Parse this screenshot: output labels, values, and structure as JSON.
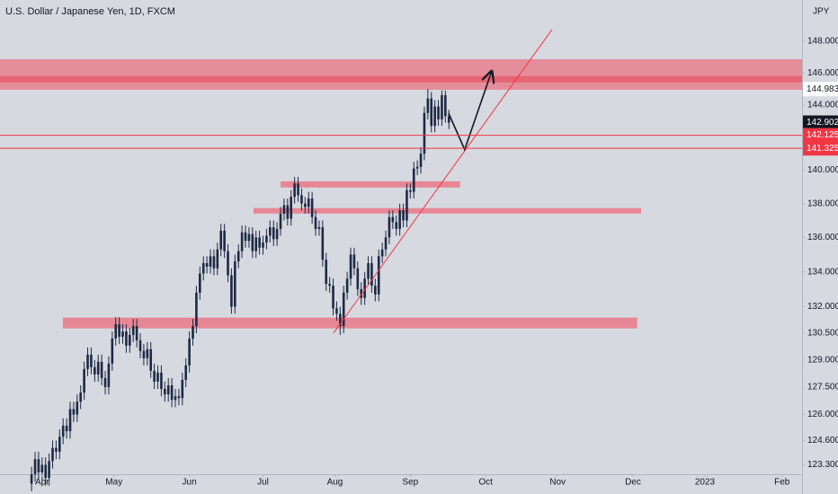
{
  "chart_data": {
    "type": "candlestick",
    "title": "U.S. Dollar / Japanese Yen, 1D, FXCM",
    "y_axis_label": "JPY",
    "log": true,
    "grid": false,
    "color": "#1e2a45",
    "xlim": [
      -12,
      216.7
    ],
    "ylim": [
      122.8,
      150.66
    ],
    "xticks": [
      {
        "value": 0,
        "label": "Apr"
      },
      {
        "value": 20.5,
        "label": "May"
      },
      {
        "value": 42,
        "label": "Jun"
      },
      {
        "value": 63,
        "label": "Jul"
      },
      {
        "value": 83.5,
        "label": "Aug"
      },
      {
        "value": 105,
        "label": "Sep"
      },
      {
        "value": 126.5,
        "label": "Oct"
      },
      {
        "value": 147,
        "label": "Nov"
      },
      {
        "value": 168.5,
        "label": "Dec"
      },
      {
        "value": 189,
        "label": "2023"
      },
      {
        "value": 211,
        "label": "Feb"
      }
    ],
    "yticks": [
      {
        "value": 123.3,
        "label": "123.300"
      },
      {
        "value": 124.6,
        "label": "124.600"
      },
      {
        "value": 126,
        "label": "126.000"
      },
      {
        "value": 127.5,
        "label": "127.500"
      },
      {
        "value": 129,
        "label": "129.000"
      },
      {
        "value": 130.5,
        "label": "130.500"
      },
      {
        "value": 132,
        "label": "132.000"
      },
      {
        "value": 134,
        "label": "134.000"
      },
      {
        "value": 136,
        "label": "136.000"
      },
      {
        "value": 138,
        "label": "138.000"
      },
      {
        "value": 140,
        "label": "140.000"
      },
      {
        "value": 144,
        "label": "144.000"
      },
      {
        "value": 146,
        "label": "146.000"
      },
      {
        "value": 148,
        "label": "148.000"
      }
    ],
    "x": [
      -3,
      -2,
      -1,
      0,
      1,
      2,
      3,
      4,
      5,
      6,
      7,
      8,
      9,
      10,
      11,
      12,
      13,
      14,
      15,
      16,
      17,
      18,
      19,
      20,
      21,
      22,
      23,
      24,
      25,
      26,
      27,
      28,
      29,
      30,
      31,
      32,
      33,
      34,
      35,
      36,
      37,
      38,
      39,
      40,
      41,
      42,
      43,
      44,
      45,
      46,
      47,
      48,
      49,
      50,
      51,
      52,
      53,
      54,
      55,
      56,
      57,
      58,
      59,
      60,
      61,
      62,
      63,
      64,
      65,
      66,
      67,
      68,
      69,
      70,
      71,
      72,
      73,
      74,
      75,
      76,
      77,
      78,
      79,
      80,
      81,
      82,
      83,
      84,
      85,
      86,
      87,
      88,
      89,
      90,
      91,
      92,
      93,
      94,
      95,
      96,
      97,
      98,
      99,
      100,
      101,
      102,
      103,
      104,
      105,
      106,
      107,
      108,
      109,
      110,
      111,
      112,
      113,
      114,
      115,
      116
    ],
    "open": [
      122.3,
      122.8,
      123.6,
      122.9,
      123.3,
      122.6,
      123.5,
      124.2,
      124.0,
      124.8,
      125.4,
      125.1,
      126.3,
      126.0,
      126.7,
      127.2,
      128.5,
      129.3,
      128.6,
      128.2,
      128.9,
      128.0,
      127.5,
      128.8,
      130.2,
      131.0,
      130.3,
      130.6,
      129.8,
      130.4,
      130.9,
      130.1,
      129.5,
      129.1,
      129.6,
      128.4,
      127.8,
      128.3,
      127.4,
      127.1,
      127.6,
      126.8,
      127.0,
      126.9,
      127.9,
      128.7,
      130.2,
      130.9,
      132.8,
      133.9,
      134.5,
      134.3,
      134.9,
      134.2,
      135.3,
      136.4,
      135.2,
      133.8,
      132.0,
      134.6,
      135.2,
      136.3,
      135.8,
      136.2,
      135.2,
      136.0,
      135.4,
      135.7,
      136.1,
      136.6,
      135.9,
      136.5,
      137.4,
      137.9,
      137.1,
      138.4,
      139.2,
      138.5,
      138.0,
      137.8,
      138.3,
      137.2,
      136.5,
      136.6,
      134.7,
      133.3,
      133.2,
      131.9,
      131.6,
      130.9,
      132.8,
      133.6,
      135.0,
      134.2,
      133.0,
      132.5,
      133.6,
      134.5,
      133.2,
      132.7,
      134.9,
      135.3,
      136.0,
      137.2,
      136.9,
      136.5,
      137.6,
      137.0,
      138.8,
      138.7,
      140.1,
      140.2,
      141.0,
      143.5,
      144.4,
      142.7,
      143.9,
      143.1,
      144.6,
      143.3
    ],
    "high": [
      123.2,
      124.0,
      124.0,
      123.7,
      123.7,
      123.9,
      124.6,
      124.6,
      125.2,
      125.8,
      125.8,
      126.7,
      126.7,
      127.1,
      127.6,
      128.9,
      129.7,
      129.7,
      129.0,
      129.3,
      129.3,
      128.4,
      129.2,
      130.6,
      131.4,
      131.4,
      131.0,
      131.0,
      130.8,
      131.3,
      131.3,
      130.5,
      129.9,
      130.0,
      130.0,
      128.8,
      128.7,
      128.7,
      127.8,
      128.0,
      128.0,
      127.4,
      127.4,
      128.3,
      129.1,
      130.6,
      131.3,
      133.2,
      134.3,
      134.9,
      134.9,
      135.3,
      135.3,
      135.7,
      136.8,
      136.8,
      135.6,
      134.2,
      135.0,
      135.6,
      136.7,
      136.7,
      136.6,
      136.6,
      136.4,
      136.4,
      136.1,
      136.5,
      137.0,
      137.0,
      136.9,
      137.8,
      138.3,
      138.3,
      138.8,
      139.6,
      139.6,
      138.9,
      138.4,
      138.7,
      138.7,
      137.6,
      137.0,
      137.0,
      135.1,
      133.7,
      133.6,
      132.3,
      132.0,
      133.2,
      134.0,
      135.4,
      135.4,
      134.6,
      133.4,
      134.0,
      134.9,
      134.9,
      133.6,
      135.3,
      135.7,
      136.4,
      137.6,
      137.6,
      137.3,
      138.0,
      138.0,
      139.2,
      139.2,
      140.5,
      140.6,
      141.4,
      143.9,
      144.983,
      144.8,
      144.3,
      144.3,
      144.9,
      144.9,
      143.7
    ],
    "low": [
      121.9,
      122.4,
      122.5,
      122.5,
      122.2,
      122.2,
      123.1,
      123.6,
      123.6,
      124.4,
      124.7,
      124.7,
      125.6,
      125.6,
      126.3,
      126.8,
      128.1,
      128.2,
      127.8,
      127.8,
      127.6,
      127.1,
      127.1,
      128.4,
      129.8,
      129.9,
      129.9,
      129.4,
      129.4,
      130.0,
      129.7,
      129.1,
      128.7,
      128.7,
      128.0,
      127.4,
      127.4,
      127.0,
      126.7,
      126.7,
      126.4,
      126.4,
      126.5,
      126.5,
      127.5,
      128.3,
      129.8,
      130.5,
      132.4,
      133.5,
      133.9,
      133.9,
      133.8,
      133.8,
      134.9,
      134.8,
      133.4,
      131.6,
      131.6,
      134.2,
      134.8,
      135.4,
      135.4,
      134.8,
      134.8,
      135.0,
      135.0,
      135.3,
      135.7,
      135.5,
      135.5,
      136.1,
      137.0,
      136.7,
      136.7,
      138.0,
      138.1,
      137.6,
      137.4,
      137.4,
      136.8,
      136.1,
      136.1,
      134.3,
      132.9,
      132.8,
      131.5,
      131.2,
      130.4,
      130.5,
      132.4,
      133.2,
      133.8,
      132.6,
      132.1,
      132.1,
      133.2,
      132.8,
      132.3,
      132.3,
      134.5,
      134.9,
      135.6,
      136.5,
      136.1,
      136.1,
      136.6,
      136.6,
      138.3,
      138.3,
      139.7,
      139.8,
      140.6,
      143.1,
      142.3,
      142.3,
      142.7,
      142.7,
      142.9,
      142.5
    ],
    "close": [
      122.8,
      123.6,
      122.9,
      123.3,
      122.6,
      123.5,
      124.2,
      124.0,
      124.8,
      125.4,
      125.1,
      126.3,
      126.0,
      126.7,
      127.2,
      128.5,
      129.3,
      128.6,
      128.2,
      128.9,
      128.0,
      127.5,
      128.8,
      130.2,
      131.0,
      130.3,
      130.6,
      129.8,
      130.4,
      130.9,
      130.1,
      129.5,
      129.1,
      129.6,
      128.4,
      127.8,
      128.3,
      127.4,
      127.1,
      127.6,
      126.8,
      127.0,
      126.9,
      127.9,
      128.7,
      130.2,
      130.9,
      132.8,
      133.9,
      134.5,
      134.3,
      134.9,
      134.2,
      135.3,
      136.4,
      135.2,
      133.8,
      132.0,
      134.6,
      135.2,
      136.3,
      135.8,
      136.2,
      135.2,
      136.0,
      135.4,
      135.7,
      136.1,
      136.6,
      135.9,
      136.5,
      137.4,
      137.9,
      137.1,
      138.4,
      139.2,
      138.5,
      138.0,
      137.8,
      138.3,
      137.2,
      136.5,
      136.6,
      134.7,
      133.3,
      133.2,
      131.9,
      131.6,
      130.9,
      132.8,
      133.6,
      135.0,
      134.2,
      133.0,
      132.5,
      133.6,
      134.5,
      133.2,
      132.7,
      134.9,
      135.3,
      136.0,
      137.2,
      136.9,
      136.5,
      137.6,
      137.0,
      138.8,
      138.7,
      140.1,
      140.2,
      141.0,
      143.5,
      144.4,
      142.7,
      143.9,
      143.1,
      144.6,
      143.3,
      142.9
    ],
    "zones": [
      {
        "low": 144.94,
        "high": 146.86,
        "from": -12,
        "to": 216.7,
        "color": "rgba(242,80,98,0.55)"
      },
      {
        "low": 145.4,
        "high": 145.8,
        "from": -12,
        "to": 216.7,
        "color": "rgba(230,50,72,0.45)"
      },
      {
        "low": 138.96,
        "high": 139.33,
        "from": 68,
        "to": 119.2,
        "color": "rgba(242,80,98,0.6)"
      },
      {
        "low": 137.41,
        "high": 137.73,
        "from": 60.3,
        "to": 170.8,
        "color": "rgba(242,80,98,0.6)"
      },
      {
        "low": 130.77,
        "high": 131.38,
        "from": 5.9,
        "to": 169.7,
        "color": "rgba(242,80,98,0.6)"
      }
    ],
    "trendline": {
      "x": [
        83.1,
        145.4
      ],
      "y": [
        130.5,
        148.75
      ],
      "color": "#f23645"
    },
    "arrow": {
      "x": [
        115.9,
        120.5,
        128.2
      ],
      "y": [
        143.49,
        141.25,
        146.1
      ],
      "color": "#131722"
    },
    "price_labels": [
      {
        "value": 144.983,
        "label": "144.983",
        "color": "#ffffff",
        "text_color": "#131722",
        "line": false
      },
      {
        "value": 142.902,
        "label": "142.902",
        "color": "#131722",
        "text_color": "#ffffff",
        "line": false
      },
      {
        "value": 142.125,
        "label": "142.125",
        "color": "#f23645",
        "text_color": "#ffffff",
        "line": true
      },
      {
        "value": 141.325,
        "label": "141.325",
        "color": "#f23645",
        "text_color": "#ffffff",
        "line": true
      }
    ]
  }
}
